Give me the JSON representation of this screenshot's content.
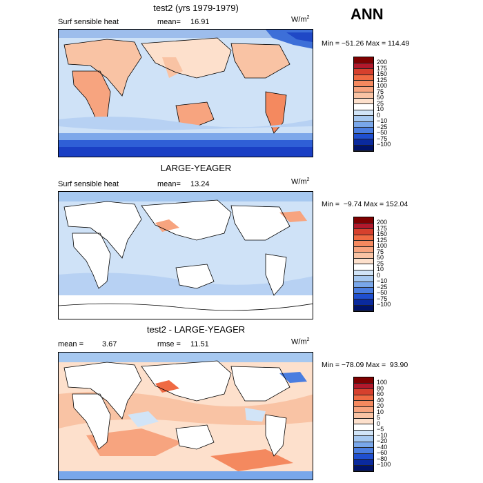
{
  "season": "ANN",
  "panels": [
    {
      "title": "test2 (yrs 1979-1979)",
      "variable": "Surf sensible heat",
      "stat1_label": "mean=",
      "stat1_value": "16.91",
      "stat2_label": "",
      "stat2_value": "",
      "units": "W/m",
      "units_exp": "2",
      "min_max": "Min = −51.26 Max = 114.49",
      "cb_labels": [
        "200",
        "175",
        "150",
        "125",
        "100",
        "75",
        "50",
        "25",
        "10",
        "0",
        "−10",
        "−25",
        "−50",
        "−75",
        "−100"
      ],
      "cb_colors": [
        "#7f0000",
        "#b2182b",
        "#d6402d",
        "#ef6a43",
        "#f4895f",
        "#f7a47f",
        "#f9c3a4",
        "#fde0cc",
        "#ffffff",
        "#d1e4f7",
        "#a6c8f0",
        "#79a7ea",
        "#4a7de0",
        "#1f4fd0",
        "#0a2a9e",
        "#00136b"
      ]
    },
    {
      "title": "LARGE-YEAGER",
      "variable": "Surf sensible heat",
      "stat1_label": "mean=",
      "stat1_value": "13.24",
      "stat2_label": "",
      "stat2_value": "",
      "units": "W/m",
      "units_exp": "2",
      "min_max": "Min =  −9.74 Max = 152.04",
      "cb_labels": [
        "200",
        "175",
        "150",
        "125",
        "100",
        "75",
        "50",
        "25",
        "10",
        "0",
        "−10",
        "−25",
        "−50",
        "−75",
        "−100"
      ],
      "cb_colors": [
        "#7f0000",
        "#b2182b",
        "#d6402d",
        "#ef6a43",
        "#f4895f",
        "#f7a47f",
        "#f9c3a4",
        "#fde0cc",
        "#ffffff",
        "#d1e4f7",
        "#a6c8f0",
        "#79a7ea",
        "#4a7de0",
        "#1f4fd0",
        "#0a2a9e",
        "#00136b"
      ]
    },
    {
      "title": "test2 - LARGE-YEAGER",
      "variable": "",
      "stat1_label": "mean =",
      "stat1_value": "3.67",
      "stat2_label": "rmse =",
      "stat2_value": "11.51",
      "units": "W/m",
      "units_exp": "2",
      "min_max": "Min = −78.09 Max =  93.90",
      "cb_labels": [
        "100",
        "80",
        "60",
        "40",
        "20",
        "10",
        "5",
        "0",
        "−5",
        "−10",
        "−20",
        "−40",
        "−60",
        "−80",
        "−100"
      ],
      "cb_colors": [
        "#7f0000",
        "#b2182b",
        "#d6402d",
        "#ef6a43",
        "#f4895f",
        "#f7a47f",
        "#f9c3a4",
        "#fde0cc",
        "#ffffff",
        "#d1e4f7",
        "#a6c8f0",
        "#79a7ea",
        "#4a7de0",
        "#1f4fd0",
        "#0a2a9e",
        "#00136b"
      ]
    }
  ]
}
